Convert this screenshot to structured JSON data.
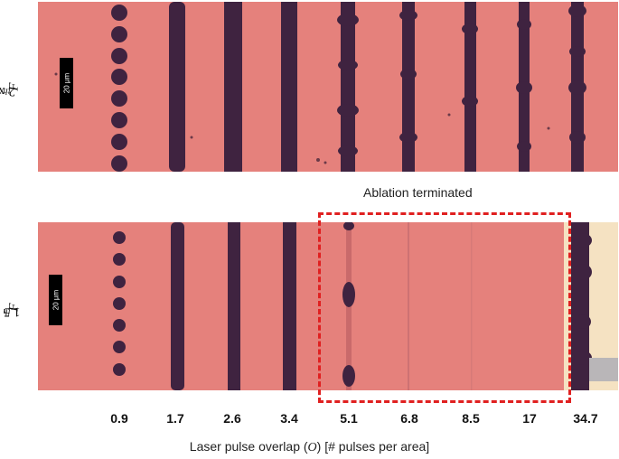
{
  "rows": [
    {
      "label_prefix": "2 x ",
      "label_symbol": "F",
      "label_sub": "th"
    },
    {
      "label_prefix": "1.5 x ",
      "label_symbol": "F",
      "label_sub": "th"
    }
  ],
  "scalebar_text": "20 µm",
  "overlap_values": [
    "0.9",
    "1.7",
    "2.6",
    "3.4",
    "5.1",
    "6.8",
    "8.5",
    "17",
    "34.7"
  ],
  "axis_title": {
    "before": "Laser pulse overlap (",
    "symbol": "O",
    "after": ") [# pulses per area]"
  },
  "annotation": "Ablation terminated",
  "colors": {
    "substrate": "#e5817c",
    "ablated": "#3f2340",
    "highlight": "#e02020",
    "exposed": "#f5e2c2"
  }
}
